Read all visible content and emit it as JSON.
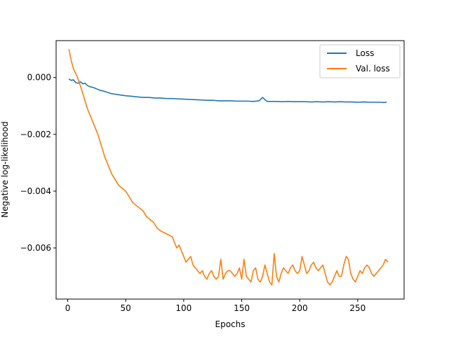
{
  "chart_data": {
    "type": "line",
    "xlabel": "Epochs",
    "ylabel": "Negative log-likelihood",
    "xlim": [
      -10,
      290
    ],
    "ylim": [
      -0.0078,
      0.0013
    ],
    "xticks": [
      0,
      50,
      100,
      150,
      200,
      250
    ],
    "yticks": [
      0.0,
      -0.002,
      -0.004,
      -0.006
    ],
    "ytick_labels": [
      "0.000",
      "−0.002",
      "−0.004",
      "−0.006"
    ],
    "xtick_labels": [
      "0",
      "50",
      "100",
      "150",
      "200",
      "250"
    ],
    "grid": false,
    "legend_position": "top-right",
    "series": [
      {
        "name": "Loss",
        "color": "#1f77b4",
        "x": [
          1,
          3,
          5,
          7,
          9,
          11,
          13,
          15,
          17,
          19,
          22,
          25,
          28,
          31,
          34,
          37,
          40,
          43,
          46,
          50,
          55,
          60,
          65,
          70,
          75,
          80,
          85,
          90,
          95,
          100,
          105,
          110,
          115,
          120,
          125,
          130,
          135,
          140,
          145,
          150,
          155,
          160,
          165,
          168,
          170,
          172,
          175,
          180,
          185,
          190,
          195,
          200,
          205,
          210,
          215,
          220,
          225,
          230,
          235,
          240,
          245,
          250,
          255,
          260,
          265,
          270,
          273,
          275
        ],
        "y": [
          -5e-05,
          -0.0001,
          -8e-05,
          -0.00018,
          -0.0002,
          -0.00015,
          -0.00022,
          -0.0002,
          -0.00028,
          -0.00032,
          -0.00035,
          -0.0004,
          -0.00045,
          -0.00048,
          -0.00052,
          -0.00056,
          -0.00058,
          -0.0006,
          -0.00062,
          -0.00064,
          -0.00066,
          -0.00068,
          -0.0007,
          -0.0007,
          -0.00072,
          -0.00072,
          -0.00074,
          -0.00074,
          -0.00075,
          -0.00076,
          -0.00077,
          -0.00078,
          -0.00079,
          -0.0008,
          -0.0008,
          -0.00082,
          -0.00082,
          -0.00082,
          -0.00083,
          -0.00083,
          -0.00083,
          -0.00084,
          -0.00082,
          -0.0007,
          -0.00078,
          -0.00084,
          -0.00084,
          -0.00084,
          -0.00085,
          -0.00084,
          -0.00085,
          -0.00085,
          -0.00085,
          -0.00086,
          -0.00085,
          -0.00086,
          -0.00085,
          -0.00086,
          -0.00085,
          -0.00086,
          -0.00086,
          -0.00087,
          -0.00086,
          -0.00087,
          -0.00087,
          -0.00087,
          -0.00088,
          -0.00086
        ]
      },
      {
        "name": "Val. loss",
        "color": "#ff7f0e",
        "x": [
          1,
          3,
          5,
          8,
          11,
          14,
          17,
          20,
          23,
          26,
          29,
          32,
          35,
          38,
          41,
          44,
          47,
          50,
          53,
          56,
          59,
          62,
          65,
          68,
          71,
          74,
          77,
          80,
          85,
          90,
          92,
          94,
          96,
          98,
          100,
          102,
          104,
          106,
          108,
          110,
          112,
          114,
          116,
          118,
          120,
          122,
          124,
          126,
          128,
          130,
          132,
          134,
          136,
          138,
          140,
          142,
          144,
          146,
          148,
          150,
          152,
          154,
          156,
          158,
          160,
          162,
          164,
          166,
          168,
          170,
          172,
          174,
          176,
          178,
          180,
          182,
          184,
          186,
          188,
          190,
          192,
          194,
          196,
          198,
          200,
          202,
          204,
          206,
          208,
          210,
          212,
          214,
          216,
          218,
          220,
          222,
          224,
          226,
          228,
          230,
          232,
          234,
          236,
          238,
          240,
          242,
          244,
          246,
          248,
          250,
          252,
          254,
          256,
          258,
          260,
          262,
          264,
          266,
          268,
          270,
          272,
          274,
          276
        ],
        "y": [
          0.001,
          0.0006,
          0.0003,
          5e-05,
          -0.0003,
          -0.0007,
          -0.0011,
          -0.0014,
          -0.0017,
          -0.002,
          -0.0024,
          -0.0028,
          -0.0031,
          -0.0034,
          -0.0036,
          -0.0038,
          -0.0039,
          -0.004,
          -0.0042,
          -0.0044,
          -0.0045,
          -0.0046,
          -0.0047,
          -0.0049,
          -0.005,
          -0.0051,
          -0.0053,
          -0.0054,
          -0.0055,
          -0.0056,
          -0.0058,
          -0.006,
          -0.0059,
          -0.0061,
          -0.0063,
          -0.0065,
          -0.0064,
          -0.0063,
          -0.0066,
          -0.0067,
          -0.0068,
          -0.0069,
          -0.0068,
          -0.007,
          -0.0071,
          -0.0069,
          -0.0068,
          -0.007,
          -0.0071,
          -0.007,
          -0.0064,
          -0.0071,
          -0.0069,
          -0.0068,
          -0.0068,
          -0.0069,
          -0.007,
          -0.0069,
          -0.0067,
          -0.0071,
          -0.0064,
          -0.007,
          -0.0071,
          -0.0072,
          -0.0068,
          -0.0067,
          -0.0071,
          -0.0072,
          -0.007,
          -0.0066,
          -0.0069,
          -0.0072,
          -0.0073,
          -0.0062,
          -0.007,
          -0.0072,
          -0.0069,
          -0.0067,
          -0.0068,
          -0.0069,
          -0.0067,
          -0.0066,
          -0.0068,
          -0.0069,
          -0.0068,
          -0.0063,
          -0.0066,
          -0.0069,
          -0.0068,
          -0.0066,
          -0.0065,
          -0.0067,
          -0.0068,
          -0.0067,
          -0.0066,
          -0.0069,
          -0.0072,
          -0.0073,
          -0.0072,
          -0.007,
          -0.0068,
          -0.007,
          -0.007,
          -0.0066,
          -0.0063,
          -0.0064,
          -0.0069,
          -0.0071,
          -0.0072,
          -0.007,
          -0.0068,
          -0.0069,
          -0.0067,
          -0.0066,
          -0.0067,
          -0.0069,
          -0.007,
          -0.0069,
          -0.0068,
          -0.0067,
          -0.0066,
          -0.0064,
          -0.0065
        ]
      }
    ]
  }
}
